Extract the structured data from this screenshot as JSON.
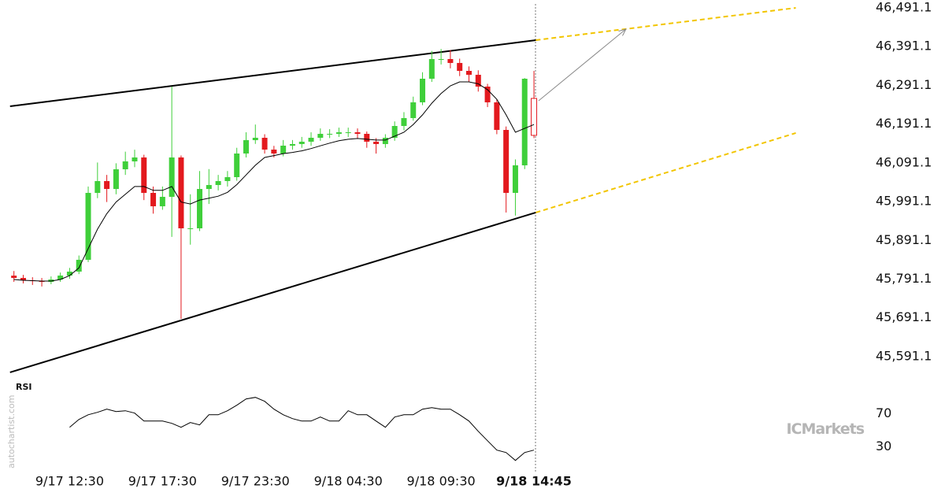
{
  "chart_data": {
    "type": "candlestick",
    "xlim": [
      -1.5,
      85
    ],
    "ylim": [
      45536.1,
      46511.4
    ],
    "xticks": [
      {
        "value": 6,
        "label": "9/17 12:30"
      },
      {
        "value": 16,
        "label": "9/17 17:30"
      },
      {
        "value": 26,
        "label": "9/17 23:30"
      },
      {
        "value": 36,
        "label": "9/18 04:30"
      },
      {
        "value": 46,
        "label": "9/18 09:30"
      },
      {
        "value": 56,
        "label": "9/18 14:45"
      }
    ],
    "yticks": [
      {
        "value": 46491.1,
        "label": "46,491.1"
      },
      {
        "value": 46391.1,
        "label": "46,391.1"
      },
      {
        "value": 46291.1,
        "label": "46,291.1"
      },
      {
        "value": 46191.1,
        "label": "46,191.1"
      },
      {
        "value": 46091.1,
        "label": "46,091.1"
      },
      {
        "value": 45991.1,
        "label": "45,991.1"
      },
      {
        "value": 45891.1,
        "label": "45,891.1"
      },
      {
        "value": 45791.1,
        "label": "45,791.1"
      },
      {
        "value": 45691.1,
        "label": "45,691.1"
      },
      {
        "value": 45591.1,
        "label": "45,591.1"
      }
    ],
    "up_color": "#3fcf3a",
    "down_color": "#e3191e",
    "open": [
      45800.0,
      45794.1,
      45788.0,
      45786.0,
      45784.0,
      45790.0,
      45800.2,
      45810.4,
      45840.9,
      46013.6,
      46044.1,
      46023.7,
      46074.5,
      46094.9,
      46105.0,
      46013.6,
      45979.0,
      46003.4,
      46105.0,
      45922.1,
      45922.1,
      46023.7,
      46033.9,
      46044.1,
      46054.2,
      46115.2,
      46149.7,
      46155.8,
      46125.3,
      46115.2,
      46135.5,
      46139.6,
      46145.7,
      46155.8,
      46166.0,
      46166.0,
      46170.0,
      46170.0,
      46166.0,
      46145.7,
      46139.6,
      46155.8,
      46186.3,
      46206.6,
      46247.3,
      46308.2,
      46359.0,
      46359.0,
      46348.9,
      46328.5,
      46318.4,
      46287.9,
      46247.3,
      46176.1,
      46013.6,
      46084.7,
      46257.4
    ],
    "high": [
      45812,
      45802,
      45796,
      45794,
      45798,
      45808,
      45820,
      45852,
      46030,
      46092,
      46060,
      46090,
      46120,
      46125,
      46112,
      46030,
      46030,
      46287.9,
      46110,
      46010,
      46070,
      46075,
      46060,
      46070,
      46130,
      46170,
      46190,
      46165,
      46135,
      46150,
      46150,
      46158,
      46170,
      46180,
      46178,
      46182,
      46182,
      46180,
      46172,
      46155,
      46165,
      46198,
      46222,
      46262,
      46325,
      46380,
      46385,
      46382,
      46360,
      46340,
      46330,
      46295,
      46255,
      46185,
      46100,
      46310,
      46328.5
    ],
    "low": [
      45784,
      45780,
      45776,
      45772,
      45778,
      45784,
      45792,
      45804,
      45835,
      46000,
      45990,
      46010,
      46060,
      46080,
      45995,
      45960,
      45970,
      45900,
      45688.5,
      45880,
      45915,
      45985,
      46020,
      46030,
      46045,
      46105,
      46140,
      46115,
      46105,
      46108,
      46125,
      46130,
      46135,
      46148,
      46155,
      46158,
      46158,
      46155,
      46130,
      46115,
      46130,
      46148,
      46175,
      46200,
      46240,
      46300,
      46345,
      46335,
      46315,
      46300,
      46275,
      46235,
      46165,
      45962.9,
      45955,
      46075,
      46155
    ],
    "close": [
      45794.1,
      45788.0,
      45786.0,
      45784.0,
      45790.0,
      45800.2,
      45810.4,
      45840.9,
      46013.6,
      46044.1,
      46023.7,
      46074.5,
      46094.9,
      46105.0,
      46013.6,
      45979.0,
      46003.4,
      46105.0,
      45922.1,
      45922.1,
      46023.7,
      46033.9,
      46044.1,
      46054.2,
      46115.2,
      46149.7,
      46155.8,
      46125.3,
      46115.2,
      46135.5,
      46139.6,
      46145.7,
      46155.8,
      46166.0,
      46166.0,
      46170.0,
      46170.0,
      46166.0,
      46145.7,
      46139.6,
      46155.8,
      46186.3,
      46206.6,
      46247.3,
      46308.2,
      46359.0,
      46359.0,
      46348.9,
      46328.5,
      46318.4,
      46287.9,
      46247.3,
      46176.1,
      46013.6,
      46084.7,
      46308.2,
      46162.1
    ],
    "moving_average": {
      "color": "#000000",
      "values": [
        45790,
        45788,
        45787,
        45786,
        45786,
        45790,
        45800,
        45820,
        45870,
        45920,
        45960,
        45990,
        46010,
        46030,
        46030,
        46020,
        46020,
        46030,
        45990,
        45985,
        45995,
        46000,
        46005,
        46015,
        46035,
        46060,
        46085,
        46105,
        46110,
        46115,
        46118,
        46122,
        46128,
        46135,
        46142,
        46148,
        46152,
        46154,
        46152,
        46150,
        46150,
        46160,
        46170,
        46190,
        46215,
        46245,
        46270,
        46290,
        46300,
        46300,
        46295,
        46280,
        46255,
        46215,
        46170,
        46180,
        46190
      ]
    },
    "lines": [
      {
        "color": "#000000",
        "dashed": false,
        "arrow": false,
        "x": [
          -0.42,
          56.2
        ],
        "values": [
          46237.1,
          46407.8
        ]
      },
      {
        "color": "#000000",
        "dashed": false,
        "arrow": false,
        "x": [
          -0.42,
          56.2
        ],
        "values": [
          45550.4,
          45962.9
        ]
      },
      {
        "color": "#f2c500",
        "dashed": true,
        "arrow": false,
        "x": [
          56.2,
          84.2
        ],
        "values": [
          46407.8,
          46491.1
        ]
      },
      {
        "color": "#f2c500",
        "dashed": true,
        "arrow": false,
        "x": [
          56.2,
          84.2
        ],
        "values": [
          45962.9,
          46168.1
        ]
      },
      {
        "color": "#888888",
        "dashed": false,
        "arrow": true,
        "x": [
          56.5,
          65.9
        ],
        "values": [
          46251.4,
          46436.2
        ]
      }
    ],
    "rsi": {
      "label": "RSI",
      "color": "#000000",
      "ylim": [
        5,
        104
      ],
      "yticks": [
        30,
        70
      ],
      "values": [
        null,
        null,
        null,
        null,
        null,
        null,
        53.8,
        63.3,
        69.0,
        71.9,
        75.7,
        72.9,
        73.8,
        71.0,
        61.4,
        61.4,
        61.4,
        58.6,
        53.8,
        59.5,
        56.7,
        69.0,
        69.0,
        73.8,
        80.5,
        88.1,
        90.0,
        85.2,
        75.7,
        69.0,
        64.3,
        61.4,
        61.4,
        66.2,
        61.4,
        61.4,
        73.8,
        69.0,
        69.0,
        61.4,
        53.8,
        66.2,
        69.0,
        69.0,
        75.7,
        77.6,
        75.7,
        75.7,
        69.0,
        61.4,
        49.0,
        37.6,
        26.2,
        23.3,
        13.8,
        23.3,
        26.2
      ]
    },
    "watermark": "autochartist.com",
    "logo": "ICMarkets"
  }
}
